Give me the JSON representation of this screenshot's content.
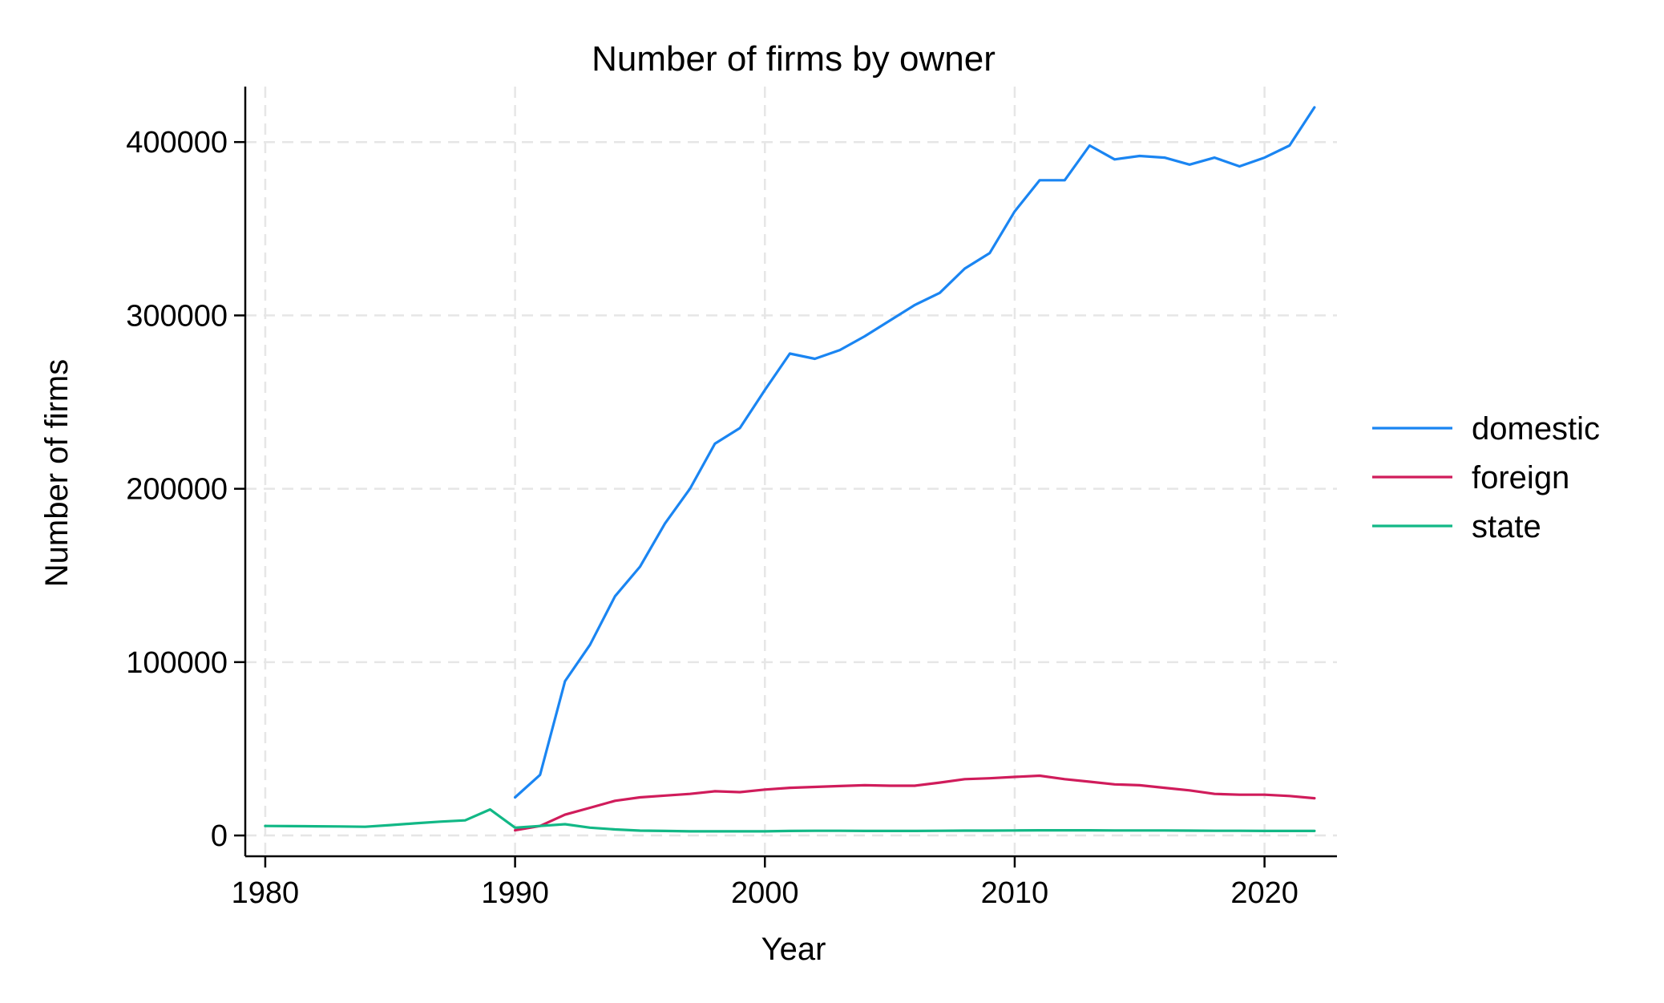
{
  "chart_data": {
    "type": "line",
    "title": "Number of firms by owner",
    "xlabel": "Year",
    "ylabel": "Number of firms",
    "xlim": [
      1979.2,
      1981.0
    ],
    "x_range": [
      1979.2,
      2022.9
    ],
    "ylim": [
      -12000,
      432000
    ],
    "xticks": [
      1980,
      1990,
      2000,
      2010,
      2020
    ],
    "yticks": [
      0,
      100000,
      200000,
      300000,
      400000
    ],
    "grid": true,
    "legend_position": "right",
    "series": [
      {
        "name": "domestic",
        "color": "#1a85f2",
        "x": [
          1990,
          1991,
          1992,
          1993,
          1994,
          1995,
          1996,
          1997,
          1998,
          1999,
          2000,
          2001,
          2002,
          2003,
          2004,
          2005,
          2006,
          2007,
          2008,
          2009,
          2010,
          2011,
          2012,
          2013,
          2014,
          2015,
          2016,
          2017,
          2018,
          2019,
          2020,
          2021,
          2022
        ],
        "y": [
          22000,
          35000,
          89000,
          110000,
          138000,
          155000,
          180000,
          200000,
          226000,
          235000,
          257000,
          278000,
          275000,
          280000,
          288000,
          297000,
          306000,
          313000,
          327000,
          336000,
          360000,
          378000,
          378000,
          398000,
          390000,
          392000,
          391000,
          387000,
          391000,
          386000,
          391000,
          398000,
          420000
        ]
      },
      {
        "name": "foreign",
        "color": "#d01c5b",
        "x": [
          1990,
          1991,
          1992,
          1993,
          1994,
          1995,
          1996,
          1997,
          1998,
          1999,
          2000,
          2001,
          2002,
          2003,
          2004,
          2005,
          2006,
          2007,
          2008,
          2009,
          2010,
          2011,
          2012,
          2013,
          2014,
          2015,
          2016,
          2017,
          2018,
          2019,
          2020,
          2021,
          2022
        ],
        "y": [
          3000,
          5500,
          12000,
          16000,
          20000,
          22000,
          23000,
          24000,
          25500,
          25000,
          26500,
          27500,
          28000,
          28500,
          29000,
          28700,
          28700,
          30500,
          32500,
          33000,
          33800,
          34500,
          32500,
          31000,
          29500,
          29000,
          27500,
          26000,
          24000,
          23500,
          23500,
          22800,
          21500
        ]
      },
      {
        "name": "state",
        "color": "#12b886",
        "x": [
          1980,
          1981,
          1982,
          1983,
          1984,
          1985,
          1986,
          1987,
          1988,
          1989,
          1990,
          1991,
          1992,
          1993,
          1994,
          1995,
          1996,
          1997,
          1998,
          1999,
          2000,
          2001,
          2002,
          2003,
          2004,
          2005,
          2006,
          2007,
          2008,
          2009,
          2010,
          2011,
          2012,
          2013,
          2014,
          2015,
          2016,
          2017,
          2018,
          2019,
          2020,
          2021,
          2022
        ],
        "y": [
          5500,
          5400,
          5300,
          5200,
          5000,
          6000,
          7000,
          8000,
          8700,
          15000,
          4500,
          5500,
          6500,
          4500,
          3500,
          2800,
          2600,
          2400,
          2400,
          2400,
          2400,
          2600,
          2700,
          2700,
          2600,
          2600,
          2600,
          2700,
          2800,
          2800,
          2900,
          3000,
          3000,
          3000,
          2900,
          2900,
          2900,
          2800,
          2700,
          2700,
          2600,
          2600,
          2600
        ]
      }
    ]
  }
}
